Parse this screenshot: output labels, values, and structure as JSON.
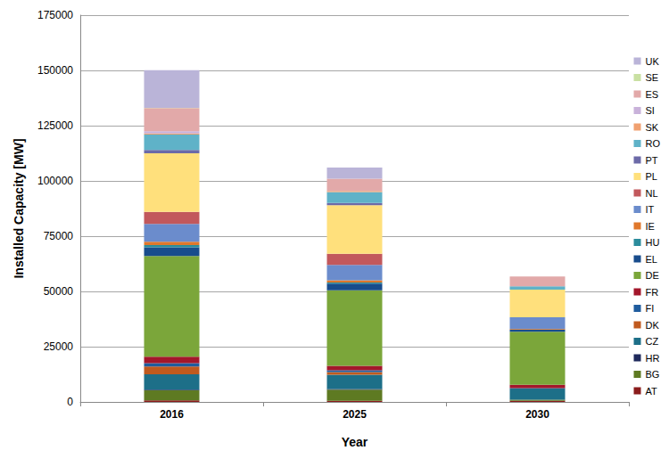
{
  "chart_data": {
    "type": "bar",
    "stacked": true,
    "grid": true,
    "legend": "right",
    "x_label": "Year",
    "y_label": "Installed Capacity [MW]",
    "categories": [
      "2016",
      "2025",
      "2030"
    ],
    "ylim": [
      0,
      175000
    ],
    "yticks": [
      0,
      25000,
      50000,
      75000,
      100000,
      125000,
      150000,
      175000
    ],
    "series": [
      {
        "name": "AT",
        "color": "#8b1c1c",
        "values": [
          700,
          500,
          500
        ]
      },
      {
        "name": "BG",
        "color": "#5e7a22",
        "values": [
          4500,
          5000,
          500
        ]
      },
      {
        "name": "HR",
        "color": "#1f2a5c",
        "values": [
          300,
          300,
          0
        ]
      },
      {
        "name": "CZ",
        "color": "#1d6f88",
        "values": [
          7000,
          6500,
          5000
        ]
      },
      {
        "name": "DK",
        "color": "#c05a1e",
        "values": [
          3500,
          1200,
          0
        ]
      },
      {
        "name": "FI",
        "color": "#1f5c9e",
        "values": [
          1500,
          800,
          300
        ]
      },
      {
        "name": "FR",
        "color": "#a3172b",
        "values": [
          3000,
          2000,
          1500
        ]
      },
      {
        "name": "DE",
        "color": "#7ba63a",
        "values": [
          45500,
          34200,
          24000
        ]
      },
      {
        "name": "EL",
        "color": "#184c8c",
        "values": [
          4000,
          3000,
          1000
        ]
      },
      {
        "name": "HU",
        "color": "#2b8c9c",
        "values": [
          1000,
          500,
          0
        ]
      },
      {
        "name": "IE",
        "color": "#e0782c",
        "values": [
          1500,
          1000,
          300
        ]
      },
      {
        "name": "IT",
        "color": "#6b8ccc",
        "values": [
          8000,
          7000,
          5200
        ]
      },
      {
        "name": "NL",
        "color": "#c2585c",
        "values": [
          5500,
          5000,
          0
        ]
      },
      {
        "name": "PL",
        "color": "#ffe07c",
        "values": [
          26500,
          22000,
          12500
        ]
      },
      {
        "name": "PT",
        "color": "#6c6aa8",
        "values": [
          1500,
          1000,
          0
        ]
      },
      {
        "name": "RO",
        "color": "#5fb2c8",
        "values": [
          7000,
          5000,
          1500
        ]
      },
      {
        "name": "SK",
        "color": "#f0a070",
        "values": [
          500,
          500,
          0
        ]
      },
      {
        "name": "SI",
        "color": "#c9b2da",
        "values": [
          1000,
          0,
          0
        ]
      },
      {
        "name": "ES",
        "color": "#e2a9a9",
        "values": [
          10500,
          5500,
          4500
        ]
      },
      {
        "name": "SE",
        "color": "#c9e0a2",
        "values": [
          100,
          0,
          0
        ]
      },
      {
        "name": "UK",
        "color": "#bab4d8",
        "values": [
          17000,
          5000,
          0
        ]
      }
    ]
  }
}
